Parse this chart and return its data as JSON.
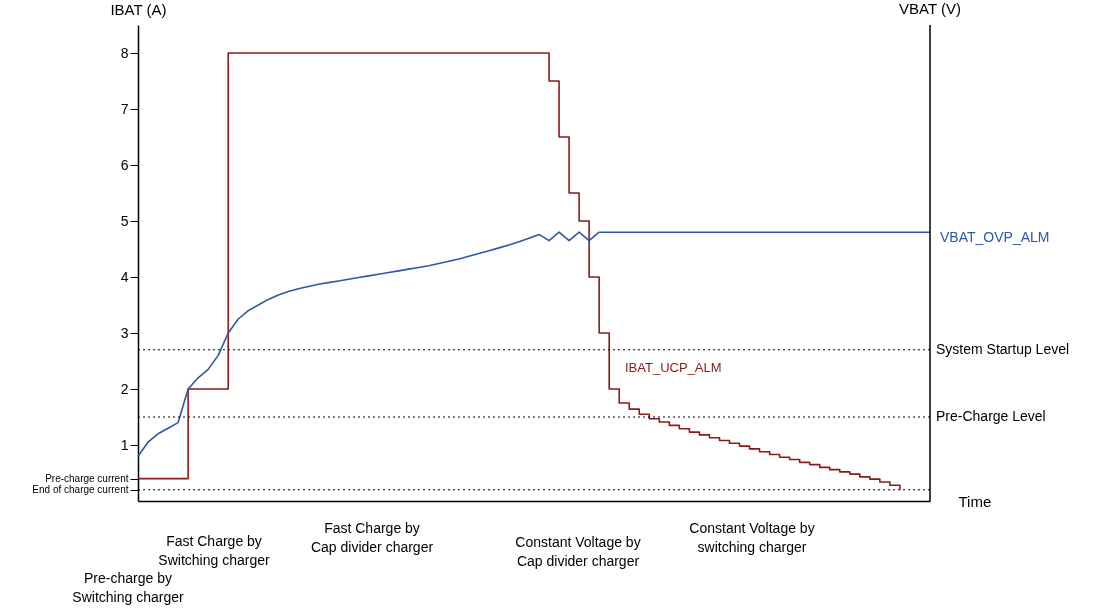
{
  "chart_data": {
    "type": "line",
    "ylabel": "IBAT (A)",
    "y2label": "VBAT (V)",
    "xlabel": "Time",
    "categories": [
      null,
      null,
      null,
      null,
      null,
      null,
      null,
      null,
      null,
      null,
      null,
      null,
      null,
      null,
      null,
      null,
      null,
      null,
      null,
      null,
      null,
      null,
      null,
      null,
      null,
      null,
      null,
      null,
      null,
      null,
      null,
      null,
      null,
      null,
      null,
      null,
      null,
      null,
      null,
      null,
      null,
      null,
      null,
      null,
      null,
      null,
      null,
      null,
      null,
      null,
      null,
      null,
      null,
      null,
      null,
      null,
      null,
      null,
      null,
      null,
      null,
      null,
      null,
      null,
      null,
      null,
      null,
      null,
      null,
      null,
      null,
      null,
      null,
      null,
      null,
      null,
      null,
      null,
      null,
      null
    ],
    "ylim": [
      0,
      8.5
    ],
    "yticks": [
      {
        "value": 0.2,
        "label": "End of charge current"
      },
      {
        "value": 0.4,
        "label": "Pre-charge current"
      },
      1,
      2,
      3,
      4,
      5,
      6,
      7,
      8
    ],
    "tick_labels": "y",
    "grid": false,
    "marker": "none",
    "line_style": "solid",
    "series": [
      {
        "type": "step",
        "color": "#8b1a1a",
        "values": [
          0.4,
          0.4,
          0.4,
          0.4,
          0.4,
          2,
          2,
          2,
          2,
          8,
          8,
          8,
          8,
          8,
          8,
          8,
          8,
          8,
          8,
          8,
          8,
          8,
          8,
          8,
          8,
          8,
          8,
          8,
          8,
          8,
          8,
          8,
          8,
          8,
          8,
          8,
          8,
          8,
          8,
          8,
          8,
          7.5,
          6.5,
          5.5,
          5,
          4,
          3,
          2,
          1.75,
          1.64,
          1.55,
          1.47,
          1.41,
          1.35,
          1.29,
          1.23,
          1.18,
          1.13,
          1.08,
          1.03,
          0.98,
          0.93,
          0.88,
          0.83,
          0.78,
          0.74,
          0.69,
          0.65,
          0.6,
          0.56,
          0.52,
          0.48,
          0.43,
          0.39,
          0.34,
          0.28,
          0.2,
          null,
          null,
          null
        ]
      },
      {
        "type": "line",
        "color": "#2b58a8",
        "values": [
          0.8,
          1.05,
          1.2,
          1.3,
          1.4,
          2.0,
          2.2,
          2.35,
          2.6,
          3.0,
          3.25,
          3.4,
          3.5,
          3.6,
          3.68,
          3.74,
          3.79,
          3.83,
          3.87,
          3.9,
          3.93,
          3.96,
          3.99,
          4.02,
          4.05,
          4.08,
          4.11,
          4.14,
          4.17,
          4.2,
          4.24,
          4.28,
          4.32,
          4.37,
          4.42,
          4.47,
          4.52,
          4.57,
          4.63,
          4.69,
          4.76,
          4.65,
          4.8,
          4.65,
          4.8,
          4.65,
          4.8,
          4.8,
          4.8,
          4.8,
          4.8,
          4.8,
          4.8,
          4.8,
          4.8,
          4.8,
          4.8,
          4.8,
          4.8,
          4.8,
          4.8,
          4.8,
          4.8,
          4.8,
          4.8,
          4.8,
          4.8,
          4.8,
          4.8,
          4.8,
          4.8,
          4.8,
          4.8,
          4.8,
          4.8,
          4.8,
          4.8,
          4.8,
          4.8,
          4.8
        ]
      }
    ],
    "ref_lines": [
      {
        "axis": "y",
        "value": 2.7,
        "label": "System Startup Level",
        "line_style": "dotted"
      },
      {
        "axis": "y",
        "value": 1.5,
        "label": "Pre-Charge Level",
        "line_style": "dotted"
      },
      {
        "axis": "y",
        "value": 0.2,
        "label": null,
        "line_style": "dotted"
      }
    ],
    "annotations": [
      "IBAT_UCP_ALM",
      "VBAT_OVP_ALM",
      "Pre-charge by\nSwitching charger",
      "Fast Charge by\nSwitching charger",
      "Fast Charge by\nCap divider charger",
      "Constant Voltage by\nCap divider charger",
      "Constant Voltage by\nswitching charger"
    ]
  }
}
